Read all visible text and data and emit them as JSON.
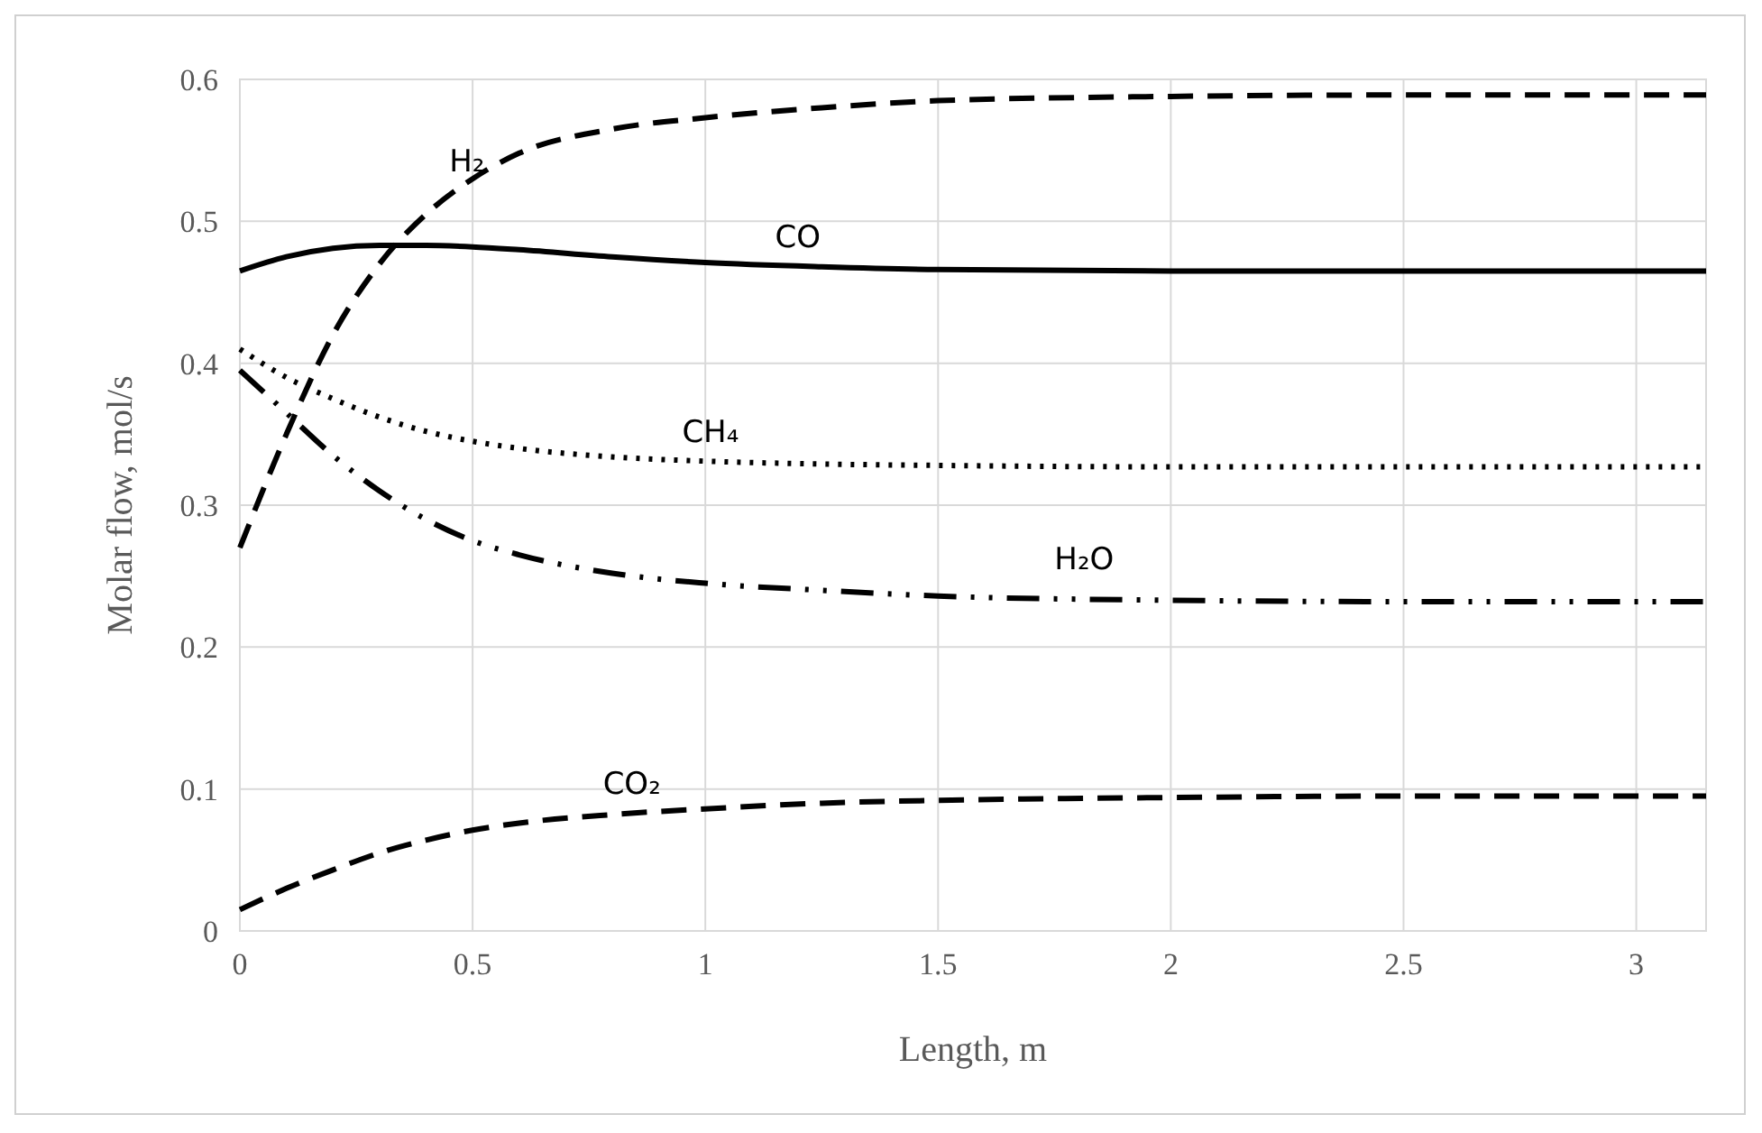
{
  "chart_data": {
    "type": "line",
    "xlabel": "Length, m",
    "ylabel": "Molar flow, mol/s",
    "xlim": [
      0,
      3.15
    ],
    "xticks": [
      0,
      0.5,
      1,
      1.5,
      2,
      2.5,
      3
    ],
    "ylim": [
      0,
      0.6
    ],
    "yticks": [
      0,
      0.1,
      0.2,
      0.3,
      0.4,
      0.5,
      0.6
    ],
    "grid": true,
    "marker": "none",
    "x": [
      0,
      0.1,
      0.2,
      0.3,
      0.4,
      0.5,
      0.6,
      0.8,
      1,
      1.25,
      1.5,
      2,
      2.5,
      3,
      3.15
    ],
    "series": [
      {
        "name": "H₂",
        "color": "#000000",
        "line_style": "dashed",
        "values": [
          0.27,
          0.35,
          0.42,
          0.47,
          0.505,
          0.53,
          0.548,
          0.565,
          0.573,
          0.58,
          0.585,
          0.588,
          0.589,
          0.589,
          0.589
        ]
      },
      {
        "name": "CO",
        "color": "#000000",
        "line_style": "solid",
        "values": [
          0.465,
          0.475,
          0.481,
          0.483,
          0.483,
          0.482,
          0.48,
          0.475,
          0.471,
          0.468,
          0.466,
          0.465,
          0.465,
          0.465,
          0.465
        ]
      },
      {
        "name": "CH₄",
        "color": "#000000",
        "line_style": "dotted",
        "values": [
          0.41,
          0.39,
          0.375,
          0.362,
          0.352,
          0.345,
          0.34,
          0.334,
          0.331,
          0.329,
          0.328,
          0.327,
          0.327,
          0.327,
          0.327
        ]
      },
      {
        "name": "H₂O",
        "color": "#000000",
        "line_style": "dashdot",
        "values": [
          0.395,
          0.365,
          0.335,
          0.31,
          0.29,
          0.275,
          0.265,
          0.252,
          0.245,
          0.24,
          0.236,
          0.233,
          0.232,
          0.232,
          0.232
        ]
      },
      {
        "name": "CO₂",
        "color": "#000000",
        "line_style": "dashed",
        "values": [
          0.015,
          0.03,
          0.043,
          0.055,
          0.064,
          0.071,
          0.076,
          0.082,
          0.086,
          0.09,
          0.092,
          0.094,
          0.095,
          0.095,
          0.095
        ]
      }
    ]
  }
}
